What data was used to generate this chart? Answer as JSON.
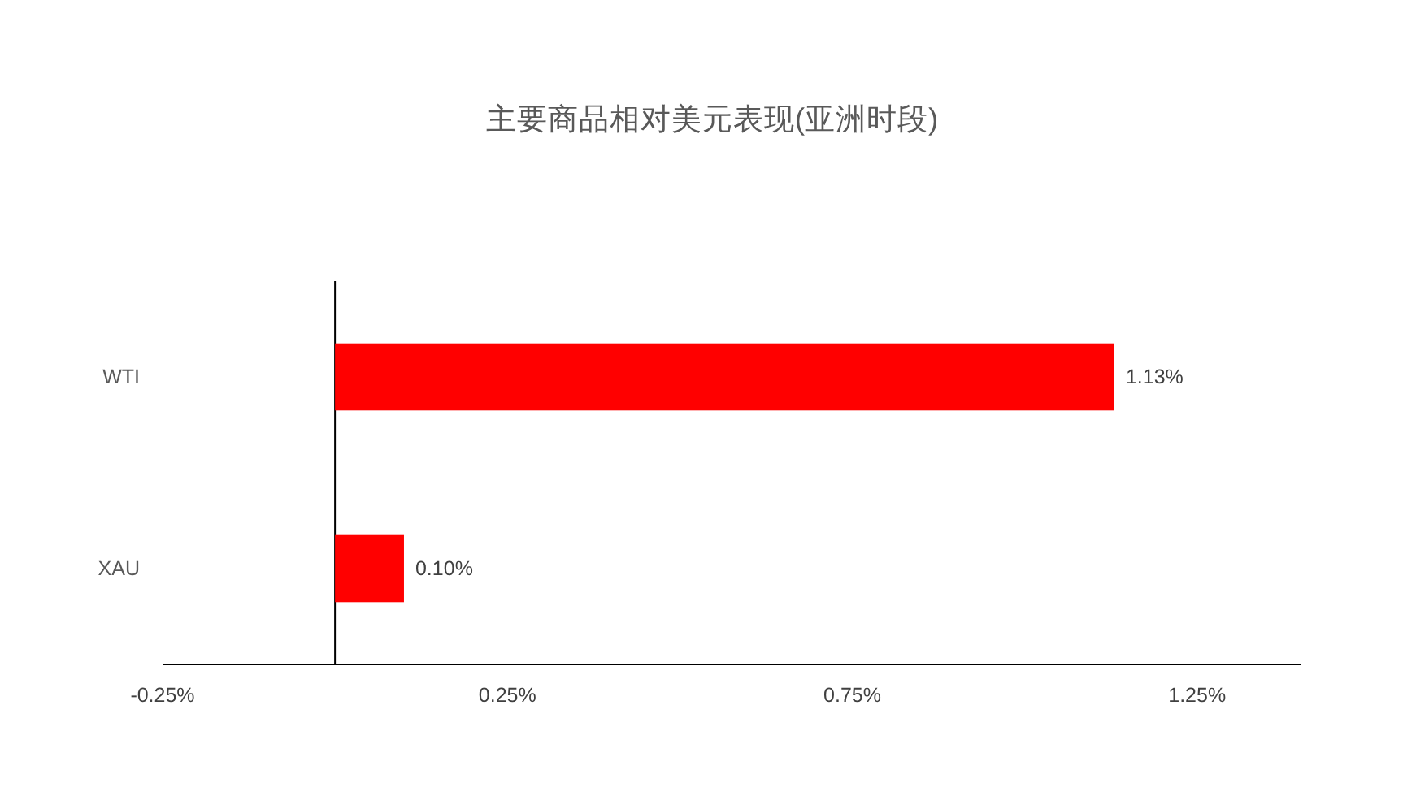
{
  "chart_data": {
    "type": "bar",
    "orientation": "horizontal",
    "title": "主要商品相对美元表现(亚洲时段)",
    "categories": [
      "WTI",
      "XAU"
    ],
    "values": [
      1.13,
      0.1
    ],
    "value_labels": [
      "1.13%",
      "0.10%"
    ],
    "color": "#ff0000",
    "xlim": [
      -0.25,
      1.4
    ],
    "xticks": [
      {
        "value": -0.25,
        "label": "-0.25%"
      },
      {
        "value": 0.25,
        "label": "0.25%"
      },
      {
        "value": 0.75,
        "label": "0.75%"
      },
      {
        "value": 1.25,
        "label": "1.25%"
      }
    ]
  }
}
